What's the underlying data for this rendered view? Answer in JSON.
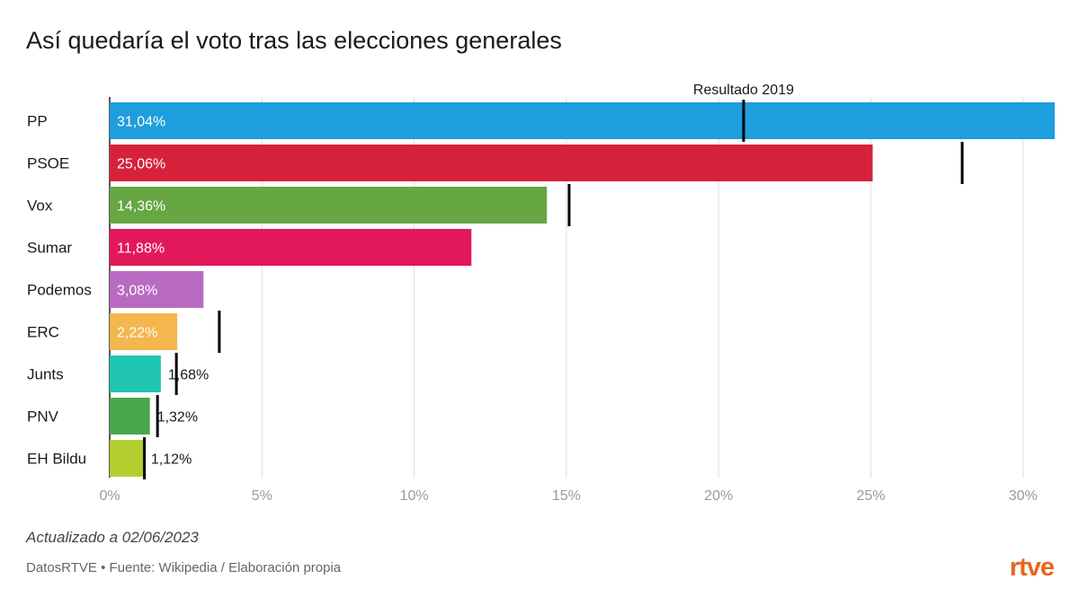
{
  "title": "Así quedaría el voto tras las elecciones generales",
  "footer": {
    "updated": "Actualizado a 02/06/2023",
    "source": "DatosRTVE • Fuente: Wikipedia / Elaboración propia",
    "logo": "rtve"
  },
  "colors": {
    "logo": "#e8651c",
    "marker": "#000000",
    "grid": "#dddddd"
  },
  "chart_data": {
    "type": "bar",
    "orientation": "horizontal",
    "categories": [
      "PP",
      "PSOE",
      "Vox",
      "Sumar",
      "Podemos",
      "ERC",
      "Junts",
      "PNV",
      "EH Bildu"
    ],
    "values": [
      31.04,
      25.06,
      14.36,
      11.88,
      3.08,
      2.22,
      1.68,
      1.32,
      1.12
    ],
    "value_labels": [
      "31,04%",
      "25,06%",
      "14,36%",
      "11,88%",
      "3,08%",
      "2,22%",
      "1,68%",
      "1,32%",
      "1,12%"
    ],
    "colors": [
      "#1e9edc",
      "#d7223c",
      "#66a643",
      "#e3185a",
      "#b96bc1",
      "#f4b74f",
      "#1fc5b1",
      "#4aa74d",
      "#b4cd2f"
    ],
    "markers": {
      "label": "Resultado 2019",
      "values": [
        20.82,
        28.0,
        15.09,
        null,
        null,
        3.6,
        2.19,
        1.57,
        1.14
      ]
    },
    "xlim": [
      0,
      31
    ],
    "ticks": [
      0,
      5,
      10,
      15,
      20,
      25,
      30
    ],
    "tick_labels": [
      "0%",
      "5%",
      "10%",
      "15%",
      "20%",
      "25%",
      "30%"
    ],
    "grid": true
  }
}
